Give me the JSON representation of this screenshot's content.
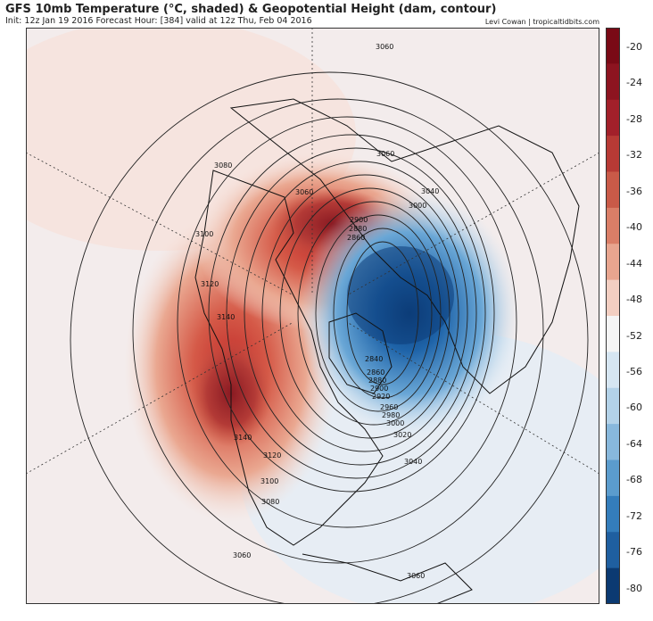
{
  "header": {
    "title": "GFS 10mb Temperature (°C, shaded) & Geopotential Height (dam, contour)",
    "subtitle": "Init: 12z Jan 19 2016   Forecast Hour: [384]   valid at 12z Thu, Feb 04 2016",
    "credit": "Levi Cowan | tropicaltidbits.com"
  },
  "colorbar": {
    "labels": [
      "-20",
      "-24",
      "-28",
      "-32",
      "-36",
      "-40",
      "-44",
      "-48",
      "-52",
      "-56",
      "-60",
      "-64",
      "-68",
      "-72",
      "-76",
      "-80"
    ],
    "colors": [
      "#7a0a16",
      "#8d1420",
      "#a2202a",
      "#b73a35",
      "#c95a48",
      "#da7e67",
      "#e8a58f",
      "#f3cfc2",
      "#f5f5f5",
      "#d6e6f2",
      "#b3d2e8",
      "#88b8dc",
      "#5b9ccd",
      "#347dbb",
      "#1f5fa0",
      "#0b3a72"
    ]
  },
  "map": {
    "contour_labels": [
      "3060",
      "3060",
      "3080",
      "3060",
      "3040",
      "3000",
      "2900",
      "2880",
      "2860",
      "3100",
      "3120",
      "3140",
      "2840",
      "2860",
      "2880",
      "2900",
      "2920",
      "2960",
      "2980",
      "3000",
      "3020",
      "3040",
      "3140",
      "3120",
      "3100",
      "3080",
      "3060",
      "3060"
    ],
    "warm_color": "#c0392b",
    "cold_color": "#0f4c8a"
  }
}
